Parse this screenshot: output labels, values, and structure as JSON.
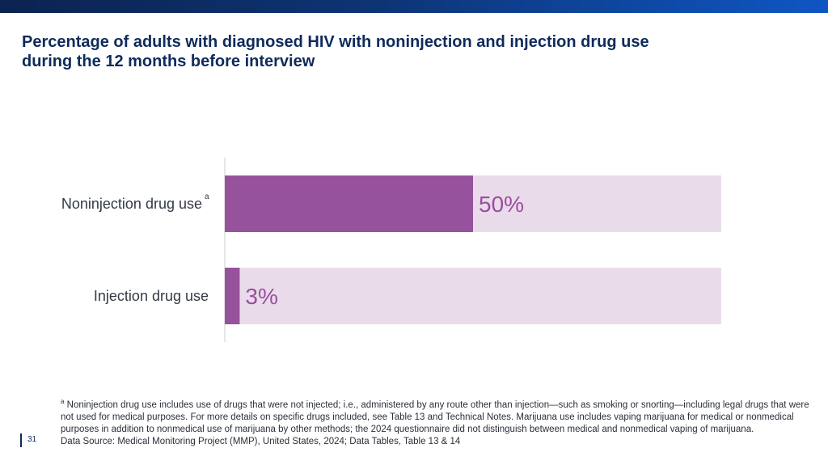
{
  "header": {
    "title_line1": "Percentage of adults with diagnosed HIV with noninjection and injection drug use",
    "title_line2": "during the 12 months before interview"
  },
  "colors": {
    "bar_fill": "#96529c",
    "bar_track": "#eadbea",
    "value_text": "#9a4ea0",
    "title": "#0f2b5b"
  },
  "chart_data": {
    "type": "bar",
    "orientation": "horizontal",
    "categories": [
      "Noninjection drug use",
      "Injection drug use"
    ],
    "category_superscripts": [
      "a",
      ""
    ],
    "values": [
      50,
      3
    ],
    "value_labels": [
      "50%",
      "3%"
    ],
    "xlim": [
      0,
      100
    ],
    "grid": false,
    "title": "Percentage of adults with diagnosed HIV with noninjection and injection drug use during the 12 months before interview",
    "xlabel": "",
    "ylabel": ""
  },
  "footnote": {
    "marker": "a",
    "text": "Noninjection drug use includes use of drugs that were not injected; i.e., administered by any route other than injection—such as smoking or snorting—including legal drugs that were not used for medical purposes. For more details on specific drugs included, see Table 13 and Technical Notes. Marijuana use includes vaping marijuana for medical or nonmedical purposes in addition to nonmedical use of marijuana by other methods; the 2024 questionnaire did not distinguish between medical and nonmedical vaping of marijuana.",
    "source": "Data Source: Medical Monitoring Project (MMP), United States, 2024; Data Tables, Table 13 & 14"
  },
  "page": {
    "number": "31"
  }
}
